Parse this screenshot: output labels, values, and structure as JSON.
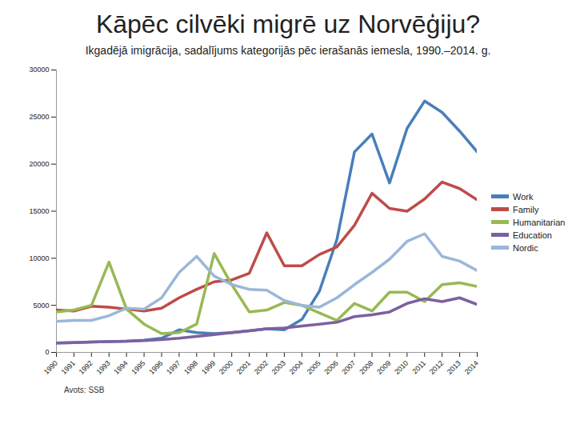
{
  "chart_data": {
    "type": "line",
    "title": "Kāpēc cilvēki migrē uz Norvēģiju?",
    "subtitle": "Ikgadējā imigrācija, sadalījums kategorijās pēc ierašanās iemesla, 1990.–2014. g.",
    "caption": "Avots: SSB",
    "x": [
      1990,
      1991,
      1992,
      1993,
      1994,
      1995,
      1996,
      1997,
      1998,
      1999,
      2000,
      2001,
      2002,
      2003,
      2004,
      2005,
      2006,
      2007,
      2008,
      2009,
      2010,
      2011,
      2012,
      2013,
      2014
    ],
    "series": [
      {
        "name": "Work",
        "color": "#4a7ebb",
        "values": [
          1000,
          1050,
          1100,
          1150,
          1200,
          1300,
          1500,
          2400,
          2100,
          2000,
          2100,
          2300,
          2500,
          2400,
          3500,
          6500,
          12000,
          21300,
          23200,
          18000,
          23800,
          26700,
          25500,
          23500,
          21300
        ]
      },
      {
        "name": "Family",
        "color": "#be4b48",
        "values": [
          4500,
          4400,
          4900,
          4800,
          4600,
          4400,
          4700,
          5800,
          6700,
          7500,
          7700,
          8400,
          12700,
          9200,
          9200,
          10400,
          11200,
          13500,
          16900,
          15300,
          15000,
          16300,
          18100,
          17400,
          16200
        ]
      },
      {
        "name": "Humanitarian",
        "color": "#98b954",
        "values": [
          4300,
          4500,
          5000,
          9600,
          4600,
          3000,
          2000,
          2100,
          3000,
          10500,
          7200,
          4300,
          4500,
          5300,
          5000,
          4200,
          3400,
          5200,
          4400,
          6400,
          6400,
          5400,
          7200,
          7400,
          7000
        ]
      },
      {
        "name": "Education",
        "color": "#7d60a0",
        "values": [
          1000,
          1050,
          1100,
          1150,
          1200,
          1250,
          1350,
          1500,
          1700,
          1900,
          2100,
          2300,
          2500,
          2600,
          2800,
          3000,
          3200,
          3800,
          4000,
          4300,
          5200,
          5700,
          5400,
          5800,
          5100
        ]
      },
      {
        "name": "Nordic",
        "color": "#9bb7d9",
        "values": [
          3300,
          3400,
          3400,
          3900,
          4700,
          4600,
          5800,
          8500,
          10200,
          8100,
          7200,
          6700,
          6600,
          5500,
          5000,
          4800,
          5800,
          7200,
          8500,
          9900,
          11800,
          12600,
          10200,
          9700,
          8700
        ]
      }
    ],
    "xlim": [
      1990,
      2014
    ],
    "xticks": [
      1990,
      1991,
      1992,
      1993,
      1994,
      1995,
      1996,
      1997,
      1998,
      1999,
      2000,
      2001,
      2002,
      2003,
      2004,
      2005,
      2006,
      2007,
      2008,
      2009,
      2010,
      2011,
      2012,
      2013,
      2014
    ],
    "ylim": [
      0,
      30000
    ],
    "yticks": [
      0,
      5000,
      10000,
      15000,
      20000,
      25000,
      30000
    ],
    "grid": false,
    "legend": "right"
  }
}
